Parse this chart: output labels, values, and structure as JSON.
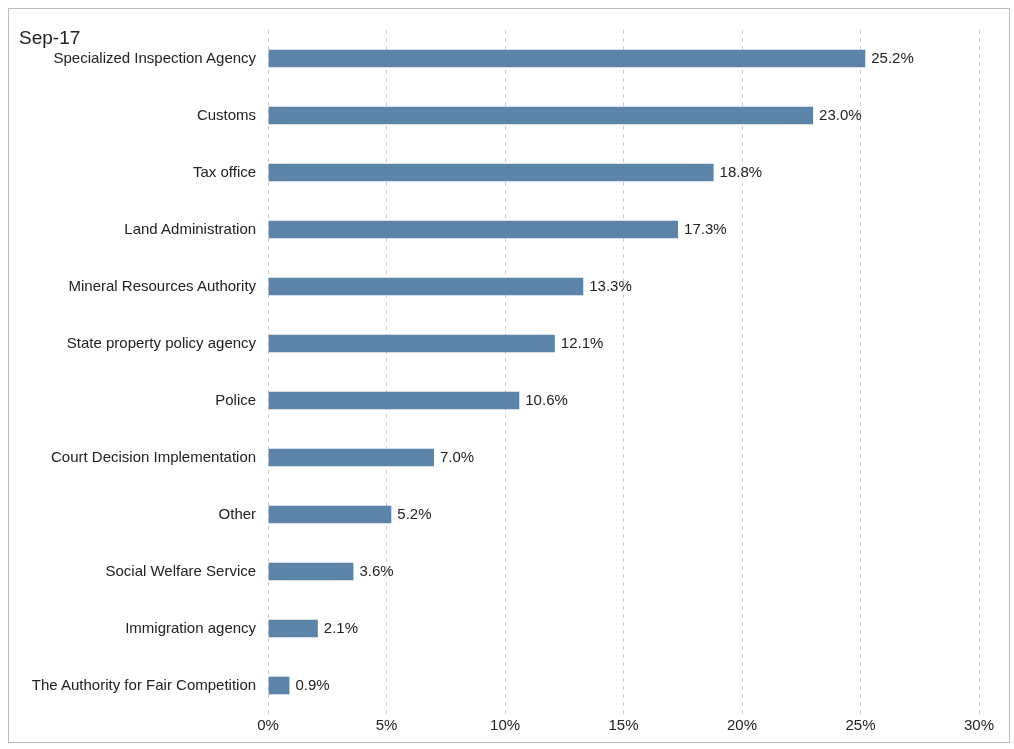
{
  "chart_data": {
    "type": "bar",
    "orientation": "horizontal",
    "title": "Sep-17",
    "categories": [
      "Specialized Inspection Agency",
      "Customs",
      "Tax office",
      "Land Administration",
      "Mineral Resources Authority",
      "State property policy agency",
      "Police",
      "Court Decision Implementation",
      "Other",
      "Social Welfare Service",
      "Immigration agency",
      "The Authority for Fair Competition"
    ],
    "values": [
      25.2,
      23.0,
      18.8,
      17.3,
      13.3,
      12.1,
      10.6,
      7.0,
      5.2,
      3.6,
      2.1,
      0.9
    ],
    "value_labels": [
      "25.2%",
      "23.0%",
      "18.8%",
      "17.3%",
      "13.3%",
      "12.1%",
      "10.6%",
      "7.0%",
      "5.2%",
      "3.6%",
      "2.1%",
      "0.9%"
    ],
    "color": "#5b84a8",
    "xlim": [
      0,
      30
    ],
    "xticks": [
      {
        "value": 0,
        "label": "0%"
      },
      {
        "value": 5,
        "label": "5%"
      },
      {
        "value": 10,
        "label": "10%"
      },
      {
        "value": 15,
        "label": "15%"
      },
      {
        "value": 20,
        "label": "20%"
      },
      {
        "value": 25,
        "label": "25%"
      },
      {
        "value": 30,
        "label": "30%"
      }
    ],
    "grid": "x",
    "legend": false
  }
}
